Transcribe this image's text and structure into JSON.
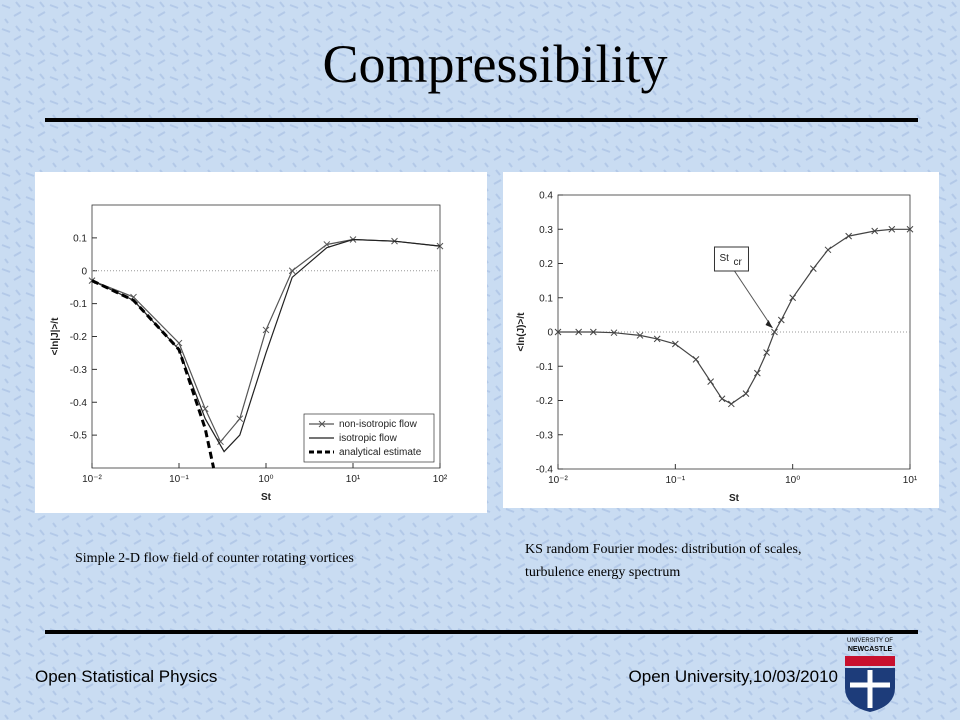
{
  "slide": {
    "title": "Compressibility",
    "caption_left": "Simple 2-D flow field of counter rotating vortices",
    "caption_right": [
      "KS random Fourier modes: distribution of scales,",
      "turbulence energy spectrum"
    ],
    "footer_left": "Open Statistical Physics",
    "footer_right": "Open University,10/03/2010",
    "logo": [
      "UNIVERSITY OF",
      "NEWCASTLE"
    ]
  },
  "chart_data": [
    {
      "type": "line",
      "xscale": "log",
      "x_label": "St",
      "y_label": "<ln|J|>/t",
      "xlim": [
        0.01,
        100
      ],
      "ylim": [
        -0.6,
        0.2
      ],
      "xticks": [
        {
          "value": 0.01,
          "label": "10⁻²"
        },
        {
          "value": 0.1,
          "label": "10⁻¹"
        },
        {
          "value": 1,
          "label": "10⁰"
        },
        {
          "value": 10,
          "label": "10¹"
        },
        {
          "value": 100,
          "label": "10²"
        }
      ],
      "yticks": [
        -0.5,
        -0.4,
        -0.3,
        -0.2,
        -0.1,
        0,
        0.1
      ],
      "zero_line": true,
      "legend": "lower-right",
      "series": [
        {
          "name": "non-isotropic flow",
          "color": "#555555",
          "marker": "x",
          "linestyle": "solid",
          "x": [
            0.01,
            0.03,
            0.1,
            0.2,
            0.3,
            0.5,
            1,
            2,
            5,
            10,
            30,
            100
          ],
          "values": [
            -0.03,
            -0.08,
            -0.22,
            -0.42,
            -0.52,
            -0.45,
            -0.18,
            0.0,
            0.08,
            0.095,
            0.09,
            0.075
          ]
        },
        {
          "name": "isotropic flow",
          "color": "#222222",
          "marker": "none",
          "linestyle": "solid",
          "x": [
            0.01,
            0.03,
            0.1,
            0.2,
            0.33,
            0.5,
            1,
            2,
            5,
            10,
            30,
            100
          ],
          "values": [
            -0.03,
            -0.09,
            -0.24,
            -0.45,
            -0.55,
            -0.5,
            -0.25,
            -0.02,
            0.07,
            0.095,
            0.09,
            0.075
          ]
        },
        {
          "name": "analytical estimate",
          "color": "#000000",
          "marker": "none",
          "linestyle": "dashed",
          "x": [
            0.01,
            0.03,
            0.1,
            0.2,
            0.25
          ],
          "values": [
            -0.03,
            -0.09,
            -0.24,
            -0.48,
            -0.6
          ]
        }
      ]
    },
    {
      "type": "line",
      "xscale": "log",
      "x_label": "St",
      "y_label": "<ln(J)>/t",
      "xlim": [
        0.01,
        10
      ],
      "ylim": [
        -0.4,
        0.4
      ],
      "xticks": [
        {
          "value": 0.01,
          "label": "10⁻²"
        },
        {
          "value": 0.1,
          "label": "10⁻¹"
        },
        {
          "value": 1,
          "label": "10⁰"
        },
        {
          "value": 10,
          "label": "10¹"
        }
      ],
      "yticks": [
        -0.4,
        -0.3,
        -0.2,
        -0.1,
        0,
        0.1,
        0.2,
        0.3,
        0.4
      ],
      "zero_line": true,
      "annotation": {
        "text": "St",
        "sub": "cr",
        "x": 0.7,
        "y": 0.0
      },
      "series": [
        {
          "color": "#444444",
          "marker": "x",
          "linestyle": "solid",
          "x": [
            0.01,
            0.015,
            0.02,
            0.03,
            0.05,
            0.07,
            0.1,
            0.15,
            0.2,
            0.25,
            0.3,
            0.4,
            0.5,
            0.6,
            0.7,
            0.8,
            1,
            1.5,
            2,
            3,
            5,
            7,
            10
          ],
          "values": [
            0,
            0,
            0,
            -0.002,
            -0.01,
            -0.02,
            -0.035,
            -0.08,
            -0.145,
            -0.195,
            -0.21,
            -0.18,
            -0.12,
            -0.06,
            0.0,
            0.035,
            0.1,
            0.185,
            0.24,
            0.28,
            0.295,
            0.3,
            0.3
          ]
        }
      ]
    }
  ]
}
